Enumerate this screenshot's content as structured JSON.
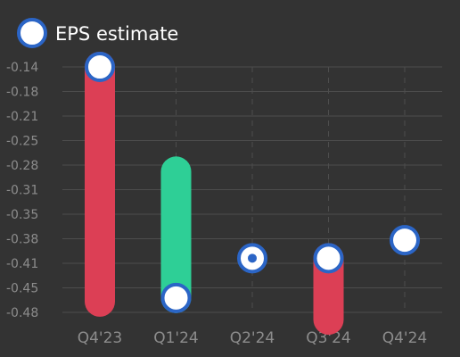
{
  "chart_data": {
    "type": "bar",
    "legend": {
      "label": "EPS estimate",
      "placement": "top-left"
    },
    "categories": [
      "Q4'23",
      "Q1'24",
      "Q2'24",
      "Q3'24",
      "Q4'24"
    ],
    "y_ticks": [
      "-0.14",
      "-0.18",
      "-0.21",
      "-0.25",
      "-0.28",
      "-0.31",
      "-0.35",
      "-0.38",
      "-0.41",
      "-0.45",
      "-0.48"
    ],
    "ylim": [
      -0.48,
      -0.14
    ],
    "grid": true,
    "series": [
      {
        "name": "EPS estimate",
        "values": [
          -0.14,
          -0.46,
          -0.405,
          -0.405,
          -0.38
        ]
      },
      {
        "values": [
          -0.465,
          -0.285,
          -0.405,
          -0.49,
          null
        ]
      }
    ],
    "colors": {
      "beat": "#2ecf96",
      "miss": "#dc3f55",
      "estimate_stroke": "#2b65c6",
      "estimate_fill": "#ffffff",
      "grid": "#4d4d4d"
    }
  }
}
